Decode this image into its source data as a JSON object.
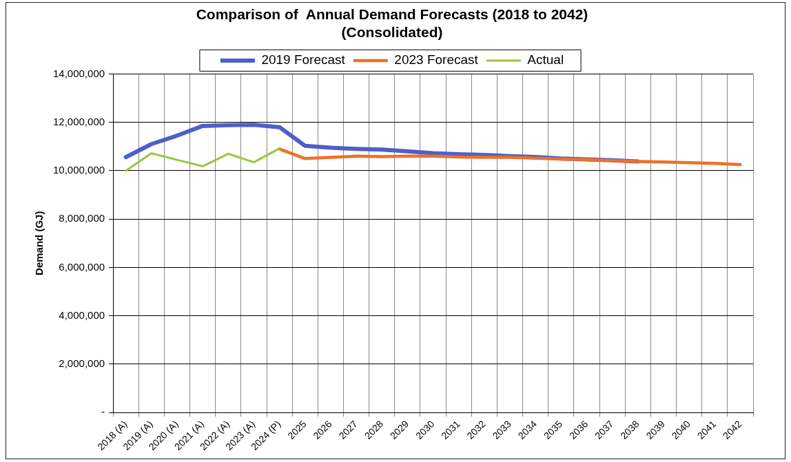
{
  "chart_data": {
    "type": "line",
    "title": "Comparison of  Annual Demand Forecasts (2018 to 2042)",
    "subtitle": "(Consolidated)",
    "ylabel": "Demand (GJ)",
    "categories": [
      "2018 (A)",
      "2019 (A)",
      "2020 (A)",
      "2021 (A)",
      "2022 (A)",
      "2023 (A)",
      "2024 (P)",
      "2025",
      "2026",
      "2027",
      "2028",
      "2029",
      "2030",
      "2031",
      "2032",
      "2033",
      "2034",
      "2035",
      "2036",
      "2037",
      "2038",
      "2039",
      "2040",
      "2041",
      "2042"
    ],
    "series": [
      {
        "name": "2019 Forecast",
        "color": "#4f5fc8",
        "values": [
          10560000,
          11100000,
          11450000,
          11850000,
          11880000,
          11900000,
          11800000,
          11030000,
          10950000,
          10900000,
          10870000,
          10800000,
          10720000,
          10680000,
          10650000,
          10600000,
          10570000,
          10500000,
          10470000,
          10430000,
          10380000,
          null,
          null,
          null,
          null
        ]
      },
      {
        "name": "2023 Forecast",
        "color": "#f07028",
        "values": [
          null,
          null,
          null,
          null,
          null,
          null,
          10900000,
          10500000,
          10550000,
          10600000,
          10580000,
          10600000,
          10600000,
          10570000,
          10550000,
          10550000,
          10520000,
          10480000,
          10460000,
          10420000,
          10380000,
          10360000,
          10330000,
          10300000,
          10250000
        ]
      },
      {
        "name": "Actual",
        "color": "#9bc53d",
        "values": [
          10000000,
          10720000,
          10450000,
          10180000,
          10700000,
          10350000,
          10920000,
          null,
          null,
          null,
          null,
          null,
          null,
          null,
          null,
          null,
          null,
          null,
          null,
          null,
          null,
          null,
          null,
          null,
          null
        ]
      }
    ],
    "ylim": [
      0,
      14000000
    ],
    "yticks": [
      {
        "value": 0,
        "label": "-"
      },
      {
        "value": 2000000,
        "label": "2,000,000"
      },
      {
        "value": 4000000,
        "label": "4,000,000"
      },
      {
        "value": 6000000,
        "label": "6,000,000"
      },
      {
        "value": 8000000,
        "label": "8,000,000"
      },
      {
        "value": 10000000,
        "label": "10,000,000"
      },
      {
        "value": 12000000,
        "label": "12,000,000"
      },
      {
        "value": 14000000,
        "label": "14,000,000"
      }
    ],
    "grid": true,
    "legend": "top",
    "marker": "none",
    "line_style": "solid"
  }
}
